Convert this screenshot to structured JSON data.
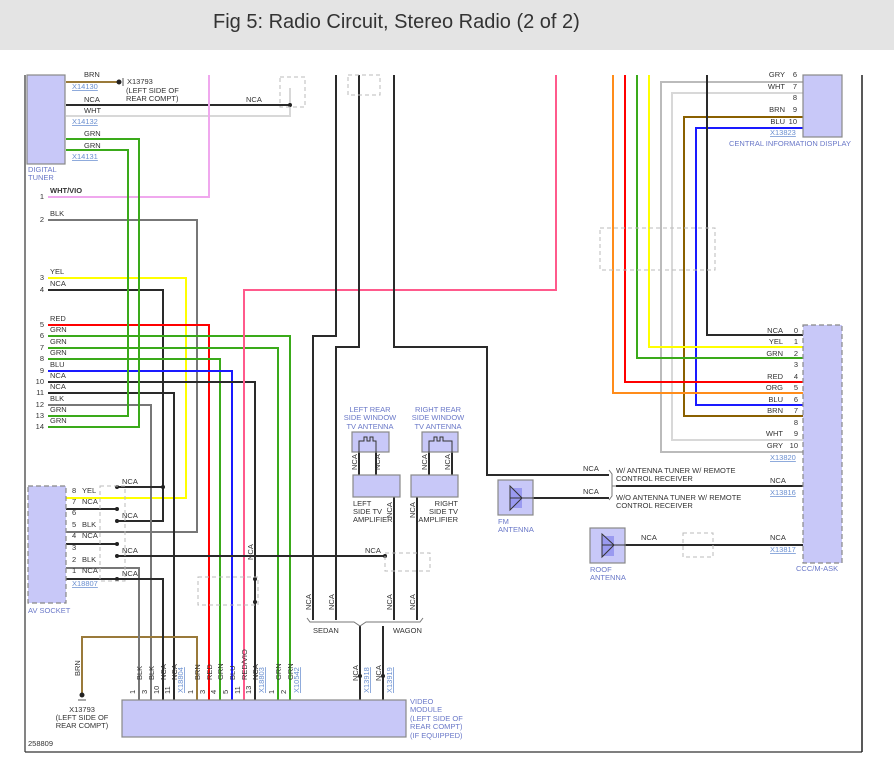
{
  "title": "Fig 5: Radio Circuit, Stereo Radio (2 of 2)",
  "figure_id": "258809",
  "wire_colors": {
    "BLK": "#2a2a2a",
    "GRAY": "#777777",
    "GRN": "#3aaa1a",
    "YEL": "#ffff00",
    "RED": "#ff0000",
    "BLU": "#1a1aff",
    "WHTVIO": "#f0a8ee",
    "REDVIO": "#ff5a8c",
    "BRN": "#9a7a3a",
    "CIDBRN": "#8a6000",
    "ORG": "#ff8c1a",
    "GRY": "#bbbbbb",
    "WHT": "#d8d8d8"
  },
  "digital_tuner": {
    "name_1": "DIGITAL",
    "name_2": "TUNER",
    "x14130": "X14130",
    "x14132": "X14132",
    "x14131": "X14131",
    "pin3_brn": "BRN",
    "nca": "NCA",
    "pin1_wht": "WHT",
    "pin1_grn": "GRN",
    "pin2_grn": "GRN",
    "ground": "X13793",
    "ground_loc_1": "(LEFT SIDE OF",
    "ground_loc_2": "REAR COMPT)",
    "nca_right": "NCA"
  },
  "left_pins": [
    {
      "pin": "1",
      "color": "WHT/VIO"
    },
    {
      "pin": "2",
      "color": "BLK"
    },
    {
      "pin": "3",
      "color": "YEL"
    },
    {
      "pin": "4",
      "color": "NCA"
    },
    {
      "pin": "5",
      "color": "RED"
    },
    {
      "pin": "6",
      "color": "GRN"
    },
    {
      "pin": "7",
      "color": "GRN"
    },
    {
      "pin": "8",
      "color": "GRN"
    },
    {
      "pin": "9",
      "color": "BLU"
    },
    {
      "pin": "10",
      "color": "NCA"
    },
    {
      "pin": "11",
      "color": "NCA"
    },
    {
      "pin": "12",
      "color": "BLK"
    },
    {
      "pin": "13",
      "color": "GRN"
    },
    {
      "pin": "14",
      "color": "GRN"
    }
  ],
  "av_socket": {
    "name": "AV SOCKET",
    "connector": "X18807",
    "pins": [
      {
        "pin": "8",
        "color": "YEL"
      },
      {
        "pin": "7",
        "color": "NCA"
      },
      {
        "pin": "6",
        "color": ""
      },
      {
        "pin": "5",
        "color": "BLK"
      },
      {
        "pin": "4",
        "color": "NCA"
      },
      {
        "pin": "3",
        "color": ""
      },
      {
        "pin": "2",
        "color": "BLK"
      },
      {
        "pin": "1",
        "color": "NCA"
      }
    ],
    "side_labels": [
      "NCA",
      "NCA",
      "NCA",
      "NCA"
    ]
  },
  "video_module": {
    "name_1": "VIDEO",
    "name_2": "MODULE",
    "loc_1": "(LEFT SIDE OF",
    "loc_2": "REAR COMPT)",
    "loc_3": "(IF EQUIPPED)",
    "ground": "X13793",
    "ground_loc_1": "(LEFT SIDE OF",
    "ground_loc_2": "REAR COMPT)",
    "ground_wire": "BRN",
    "pins": [
      {
        "pin": "1",
        "color": "BLK"
      },
      {
        "pin": "3",
        "color": "BLK"
      },
      {
        "pin": "10",
        "color": "NCA"
      },
      {
        "pin": "11",
        "color": "NCA"
      },
      {
        "pin": "",
        "color": "X18804"
      },
      {
        "pin": "1",
        "color": "BRN"
      },
      {
        "pin": "3",
        "color": "RED"
      },
      {
        "pin": "4",
        "color": "GRN"
      },
      {
        "pin": "5",
        "color": "BLU"
      },
      {
        "pin": "11",
        "color": "RED/VIO"
      },
      {
        "pin": "13",
        "color": "NCA"
      },
      {
        "pin": "",
        "color": "X18803"
      },
      {
        "pin": "1",
        "color": "GRN"
      },
      {
        "pin": "2",
        "color": "GRN"
      },
      {
        "pin": "",
        "color": "X10542"
      }
    ],
    "antenna_pins": [
      {
        "color": "NCA",
        "conn": "X13918"
      },
      {
        "color": "NCA",
        "conn": "X13919"
      }
    ],
    "mid_nca": "NCA"
  },
  "tv_antenna": {
    "left_1": "LEFT REAR",
    "left_2": "SIDE WINDOW",
    "left_3": "TV ANTENNA",
    "right_1": "RIGHT REAR",
    "right_2": "SIDE WINDOW",
    "right_3": "TV ANTENNA",
    "lamp_1": "LEFT",
    "lamp_2": "SIDE TV",
    "lamp_3": "AMPLIFIER",
    "ramp_1": "RIGHT",
    "ramp_2": "SIDE TV",
    "ramp_3": "AMPLIFIER",
    "nca": "NCA",
    "sedan": "SEDAN",
    "wagon": "WAGON",
    "av_nca": "NCA"
  },
  "cid": {
    "name": "CENTRAL INFORMATION DISPLAY",
    "connector": "X13823",
    "pins": [
      {
        "pin": "6",
        "color": "GRY"
      },
      {
        "pin": "7",
        "color": "WHT"
      },
      {
        "pin": "8",
        "color": ""
      },
      {
        "pin": "9",
        "color": "BRN"
      },
      {
        "pin": "10",
        "color": "BLU"
      }
    ]
  },
  "ccc": {
    "name": "CCC/M-ASK",
    "connector": "X13820",
    "pins": [
      {
        "pin": "0",
        "color": "NCA"
      },
      {
        "pin": "1",
        "color": "YEL"
      },
      {
        "pin": "2",
        "color": "GRN"
      },
      {
        "pin": "3",
        "color": ""
      },
      {
        "pin": "4",
        "color": "RED"
      },
      {
        "pin": "5",
        "color": "ORG"
      },
      {
        "pin": "6",
        "color": "BLU"
      },
      {
        "pin": "7",
        "color": "BRN"
      },
      {
        "pin": "8",
        "color": ""
      },
      {
        "pin": "9",
        "color": "WHT"
      },
      {
        "pin": "10",
        "color": "GRY"
      }
    ],
    "x13816": "X13816",
    "x13817": "X13817",
    "nca": "NCA"
  },
  "antennas": {
    "with_tuner_1": "W/ ANTENNA TUNER W/ REMOTE",
    "with_tuner_2": "CONTROL RECEIVER",
    "without_tuner_1": "W/O ANTENNA TUNER W/ REMOTE",
    "without_tuner_2": "CONTROL RECEIVER",
    "nca": "NCA",
    "fm_1": "FM",
    "fm_2": "ANTENNA",
    "roof_1": "ROOF",
    "roof_2": "ANTENNA"
  }
}
